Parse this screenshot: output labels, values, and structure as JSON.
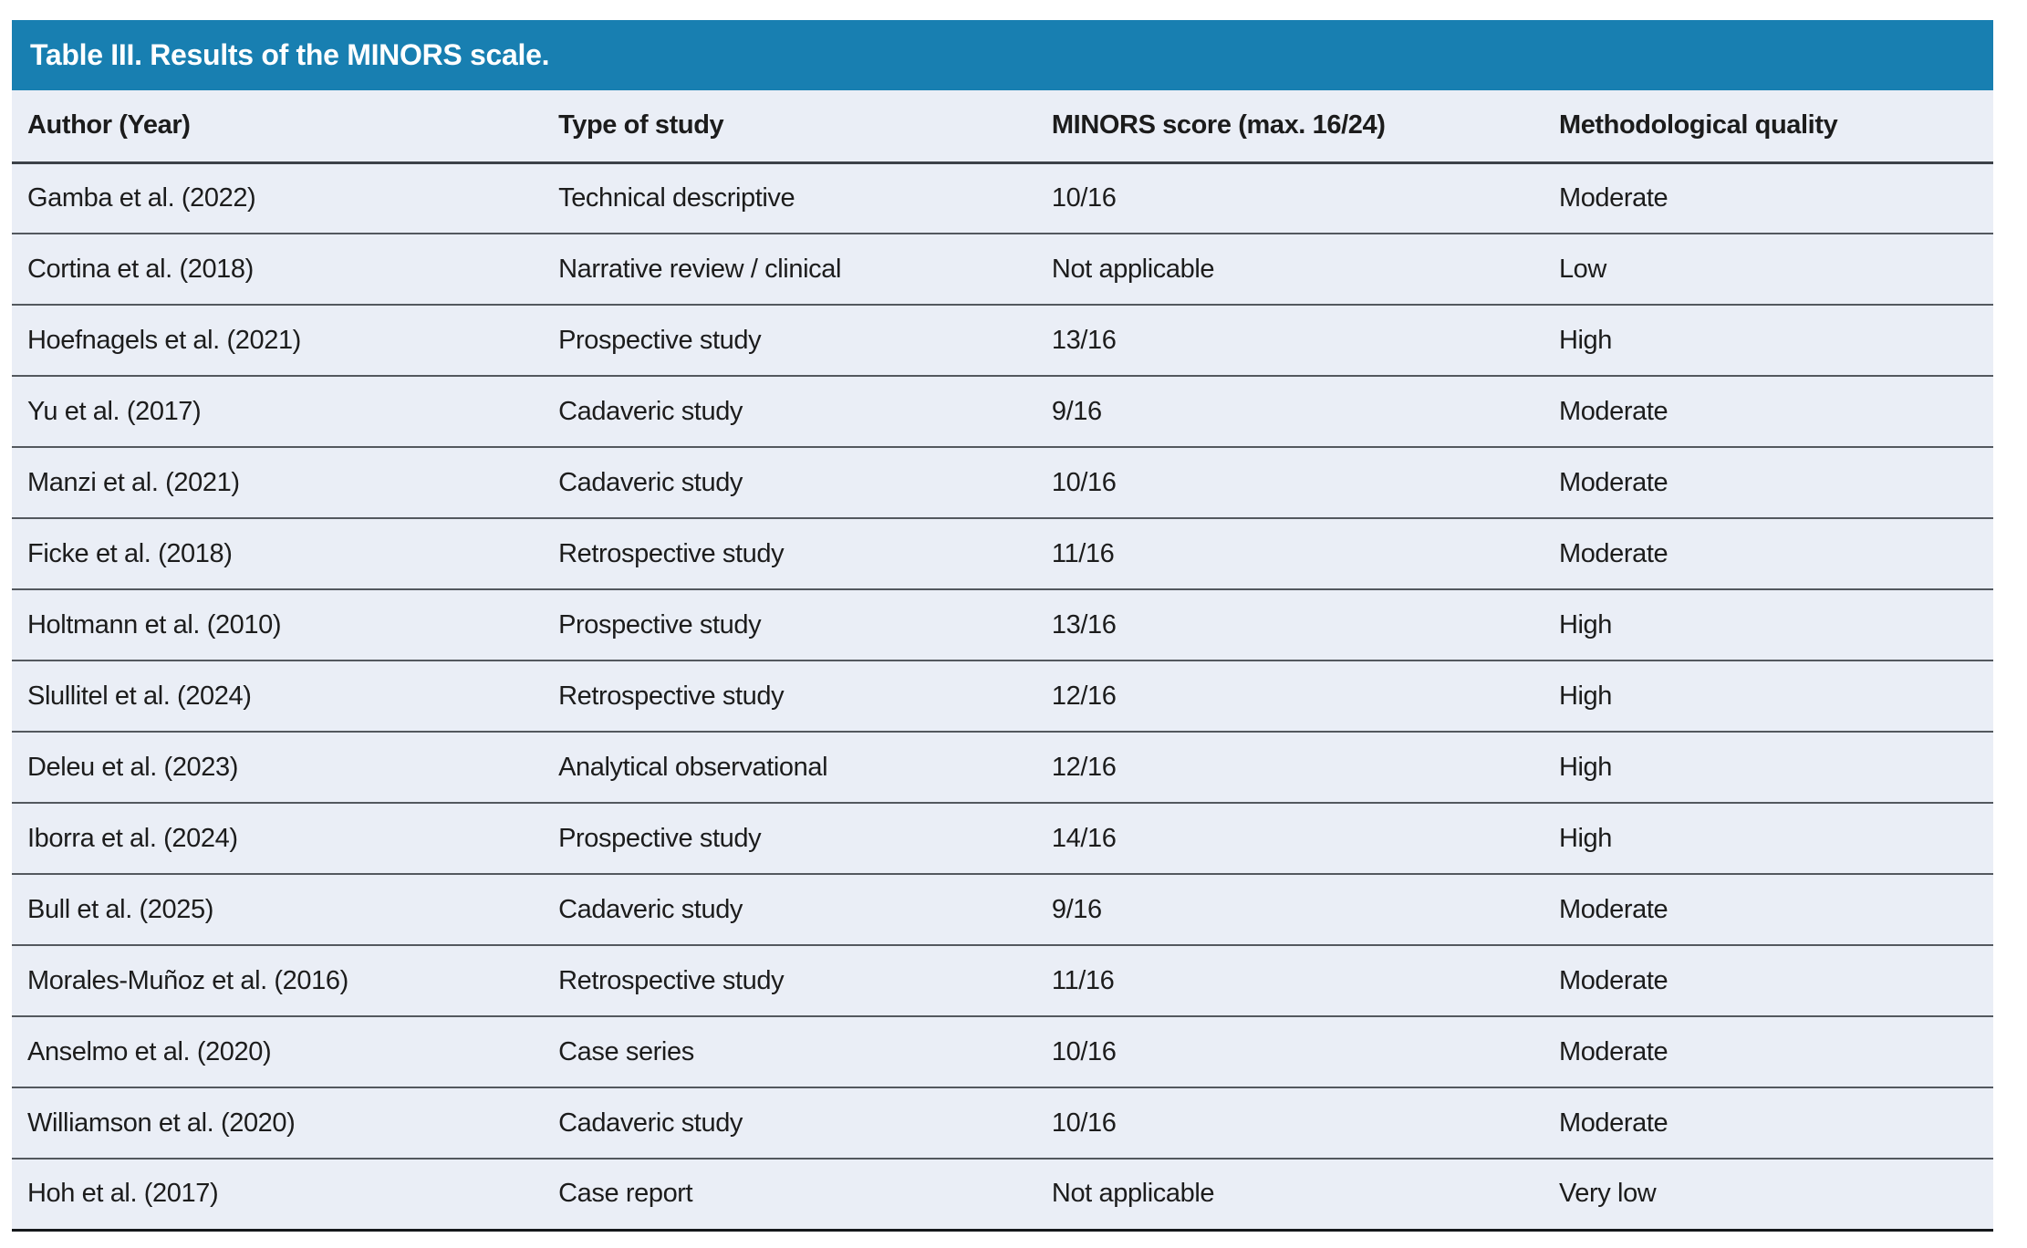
{
  "table": {
    "title": "Table III. Results of the MINORS scale.",
    "columns": [
      "Author (Year)",
      "Type of study",
      "MINORS score (max. 16/24)",
      "Methodological quality"
    ],
    "rows": [
      [
        "Gamba et al. (2022)",
        "Technical descriptive",
        "10/16",
        "Moderate"
      ],
      [
        "Cortina et al. (2018)",
        "Narrative review / clinical",
        "Not applicable",
        "Low"
      ],
      [
        "Hoefnagels et al. (2021)",
        "Prospective study",
        "13/16",
        "High"
      ],
      [
        "Yu et al. (2017)",
        "Cadaveric study",
        "9/16",
        "Moderate"
      ],
      [
        "Manzi et al. (2021)",
        "Cadaveric study",
        "10/16",
        "Moderate"
      ],
      [
        "Ficke et al. (2018)",
        "Retrospective study",
        "11/16",
        "Moderate"
      ],
      [
        "Holtmann et al. (2010)",
        "Prospective study",
        "13/16",
        "High"
      ],
      [
        "Slullitel et al. (2024)",
        "Retrospective study",
        "12/16",
        "High"
      ],
      [
        "Deleu et al. (2023)",
        "Analytical observational",
        "12/16",
        "High"
      ],
      [
        "Iborra et al. (2024)",
        "Prospective study",
        "14/16",
        "High"
      ],
      [
        "Bull et al. (2025)",
        "Cadaveric study",
        "9/16",
        "Moderate"
      ],
      [
        "Morales-Muñoz et al. (2016)",
        "Retrospective study",
        "11/16",
        "Moderate"
      ],
      [
        "Anselmo et al. (2020)",
        "Case series",
        "10/16",
        "Moderate"
      ],
      [
        "Williamson et al. (2020)",
        "Cadaveric study",
        "10/16",
        "Moderate"
      ],
      [
        "Hoh et al. (2017)",
        "Case report",
        "Not applicable",
        "Very low"
      ]
    ],
    "colors": {
      "title_bar_bg": "#187fb1",
      "title_text": "#ffffff",
      "row_bg": "#eaeef6",
      "header_border": "#3c4147",
      "row_border": "#53585e",
      "bottom_border": "#15181b",
      "text": "#1c1c1c"
    },
    "column_widths_pct": [
      26.8,
      24.9,
      25.6,
      22.7
    ]
  }
}
